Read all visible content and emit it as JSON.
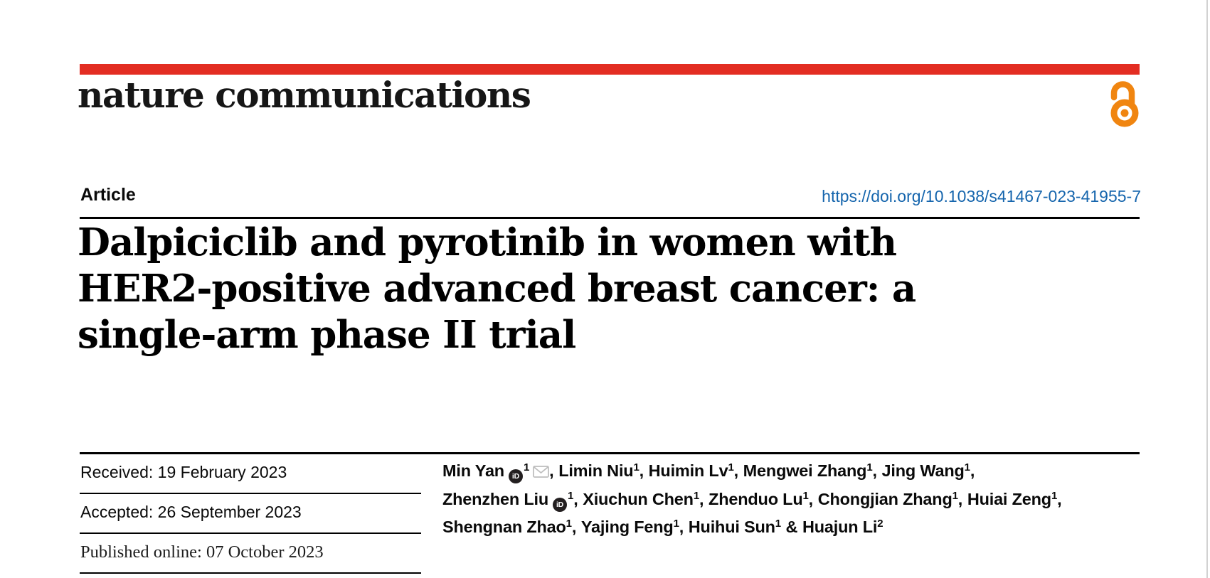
{
  "page": {
    "background": "#ffffff",
    "right_border_color": "#d2d2d2"
  },
  "header": {
    "journal": "nature communications",
    "brand_color": "#e32d22",
    "open_access_color": "#f08510"
  },
  "icons": {
    "open_access": "open-lock-icon",
    "orcid": "orcid-id-icon",
    "orcid_text": "iD",
    "email": "envelope-icon"
  },
  "meta": {
    "article_type": "Article",
    "doi": "https://doi.org/10.1038/s41467-023-41955-7",
    "doi_color": "#1565ad"
  },
  "title": {
    "full": "Dalpiciclib and pyrotinib in women with HER2-positive advanced breast cancer: a single-arm phase II trial",
    "lines": [
      "Dalpiciclib and pyrotinib in women with",
      "HER2-positive advanced breast cancer: a",
      "single-arm phase II trial"
    ]
  },
  "history": {
    "entries": [
      "Received: 19 February 2023",
      "Accepted: 26 September 2023",
      "Published online: 07 October 2023"
    ]
  },
  "authors": {
    "lines": [
      [
        {
          "name": "Min Yan",
          "orcid": true,
          "sup": "1",
          "email": true,
          "sep": ", "
        },
        {
          "name": "Limin Niu",
          "sup": "1",
          "sep": ", "
        },
        {
          "name": "Huimin Lv",
          "sup": "1",
          "sep": ", "
        },
        {
          "name": "Mengwei Zhang",
          "sup": "1",
          "sep": ", "
        },
        {
          "name": "Jing Wang",
          "sup": "1",
          "sep": ","
        }
      ],
      [
        {
          "name": "Zhenzhen Liu",
          "orcid": true,
          "sup": "1",
          "sep": ", "
        },
        {
          "name": "Xiuchun Chen",
          "sup": "1",
          "sep": ", "
        },
        {
          "name": "Zhenduo Lu",
          "sup": "1",
          "sep": ", "
        },
        {
          "name": "Chongjian Zhang",
          "sup": "1",
          "sep": ", "
        },
        {
          "name": "Huiai Zeng",
          "sup": "1",
          "sep": ","
        }
      ],
      [
        {
          "name": "Shengnan Zhao",
          "sup": "1",
          "sep": ", "
        },
        {
          "name": "Yajing Feng",
          "sup": "1",
          "sep": ", "
        },
        {
          "name": "Huihui Sun",
          "sup": "1",
          "sep": " & "
        },
        {
          "name": "Huajun Li",
          "sup": "2",
          "sep": ""
        }
      ]
    ]
  }
}
